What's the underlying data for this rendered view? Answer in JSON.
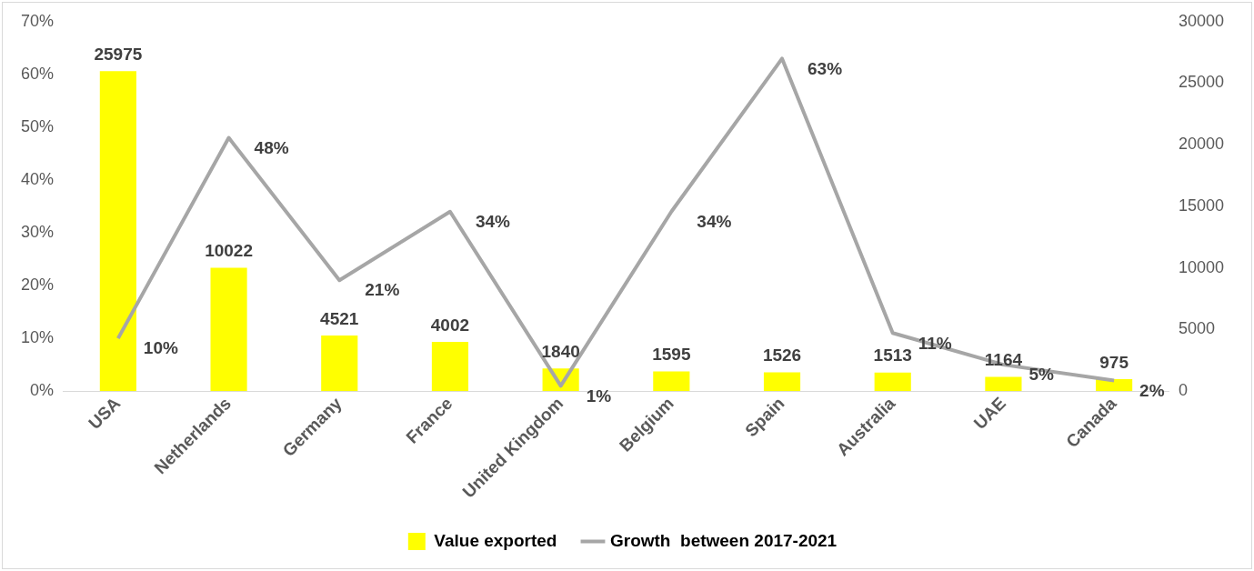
{
  "chart_data": {
    "type": "bar",
    "categories": [
      "USA",
      "Netherlands",
      "Germany",
      "France",
      "United Kingdom",
      "Belgium",
      "Spain",
      "Australia",
      "UAE",
      "Canada"
    ],
    "series": [
      {
        "name": "Value exported",
        "axis": "y2",
        "color": "#ffff00",
        "values": [
          25975,
          10022,
          4521,
          4002,
          1840,
          1595,
          1526,
          1513,
          1164,
          975
        ],
        "value_labels": [
          "25975",
          "10022",
          "4521",
          "4002",
          "1840",
          "1595",
          "1526",
          "1513",
          "1164",
          "975"
        ]
      },
      {
        "name": "Growth  between 2017-2021",
        "type": "line",
        "axis": "y",
        "color": "#a6a6a6",
        "values": [
          10,
          48,
          21,
          34,
          1,
          34,
          63,
          11,
          5,
          2
        ],
        "value_labels": [
          "10%",
          "48%",
          "21%",
          "34%",
          "1%",
          "34%",
          "63%",
          "11%",
          "5%",
          "2%"
        ]
      }
    ],
    "ylim": [
      0,
      70
    ],
    "yticks": [
      {
        "value": 0,
        "label": "0%"
      },
      {
        "value": 10,
        "label": "10%"
      },
      {
        "value": 20,
        "label": "20%"
      },
      {
        "value": 30,
        "label": "30%"
      },
      {
        "value": 40,
        "label": "40%"
      },
      {
        "value": 50,
        "label": "50%"
      },
      {
        "value": 60,
        "label": "60%"
      },
      {
        "value": 70,
        "label": "70%"
      }
    ],
    "y2lim": [
      0,
      30000
    ],
    "y2ticks": [
      0,
      5000,
      10000,
      15000,
      20000,
      25000,
      30000
    ],
    "legend": "bottom",
    "grid": false,
    "marker": "none",
    "line_style": "solid"
  }
}
